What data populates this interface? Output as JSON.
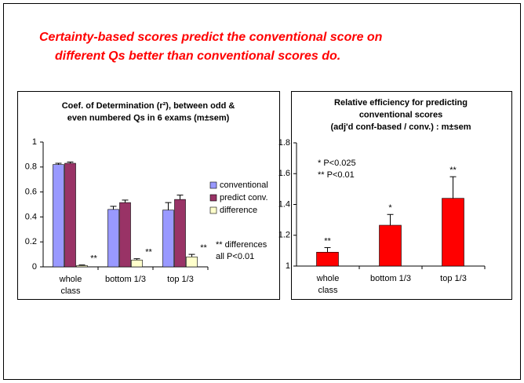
{
  "slide_title": [
    "Certainty-based scores predict the conventional score on",
    "different Qs better than conventional scores do."
  ],
  "chart_data": [
    {
      "type": "bar",
      "title": [
        "Coef. of Determination (r²), between odd &",
        "even numbered Qs in 6 exams (m±sem)"
      ],
      "categories": [
        [
          "whole",
          "class"
        ],
        [
          "bottom 1/3"
        ],
        [
          "top 1/3"
        ]
      ],
      "series": [
        {
          "name": "conventional",
          "color": "#9999ff",
          "values": [
            0.82,
            0.46,
            0.455
          ],
          "errors": [
            0.01,
            0.025,
            0.06
          ]
        },
        {
          "name": "predict conv.",
          "color": "#993366",
          "values": [
            0.83,
            0.515,
            0.54
          ],
          "errors": [
            0.01,
            0.02,
            0.035
          ]
        },
        {
          "name": "difference",
          "color": "#ffffcc",
          "values": [
            0.01,
            0.055,
            0.08
          ],
          "errors": [
            0.005,
            0.01,
            0.02
          ],
          "annotations": [
            "**",
            "**",
            "**"
          ]
        }
      ],
      "ylim": [
        0,
        1
      ],
      "yticks": [
        0,
        0.2,
        0.4,
        0.6,
        0.8,
        1
      ],
      "grid": false,
      "legend": "right",
      "notes": [
        "** differences",
        "all P<0.01"
      ]
    },
    {
      "type": "bar",
      "title": [
        "Relative efficiency for predicting",
        "conventional scores",
        "(adj'd conf-based / conv.) : m±sem"
      ],
      "categories": [
        [
          "whole",
          "class"
        ],
        [
          "bottom 1/3"
        ],
        [
          "top 1/3"
        ]
      ],
      "series": [
        {
          "name": "relative efficiency",
          "color": "#ff0000",
          "values": [
            1.09,
            1.265,
            1.44
          ],
          "errors": [
            0.03,
            0.07,
            0.14
          ],
          "annotations": [
            "**",
            "*",
            "**"
          ]
        }
      ],
      "ylim": [
        1,
        1.8
      ],
      "yticks": [
        1,
        1.2,
        1.4,
        1.6,
        1.8
      ],
      "grid": false,
      "legend": "none",
      "notes": [
        "*   P<0.025",
        "**  P<0.01"
      ]
    }
  ]
}
